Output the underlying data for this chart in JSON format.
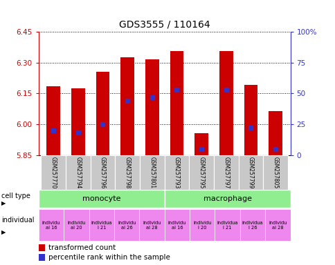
{
  "title": "GDS3555 / 110164",
  "samples": [
    "GSM257770",
    "GSM257794",
    "GSM257796",
    "GSM257798",
    "GSM257801",
    "GSM257793",
    "GSM257795",
    "GSM257797",
    "GSM257799",
    "GSM257805"
  ],
  "bar_tops": [
    6.185,
    6.175,
    6.255,
    6.325,
    6.315,
    6.355,
    5.955,
    6.355,
    6.19,
    6.065
  ],
  "percentile_ranks": [
    20,
    18,
    25,
    44,
    47,
    53,
    5,
    53,
    22,
    5
  ],
  "ylim_left": [
    5.85,
    6.45
  ],
  "ylim_right": [
    0,
    100
  ],
  "yticks_left": [
    5.85,
    6.0,
    6.15,
    6.3,
    6.45
  ],
  "yticks_right": [
    0,
    25,
    50,
    75,
    100
  ],
  "ytick_labels_right": [
    "0",
    "25",
    "50",
    "75",
    "100%"
  ],
  "bar_color": "#cc0000",
  "marker_color": "#3333cc",
  "bar_bottom": 5.85,
  "monocyte_color": "#90ee90",
  "macrophage_color": "#90ee90",
  "individual_color": "#ee88ee",
  "sample_bg_color": "#c8c8c8",
  "left_axis_color": "#cc0000",
  "right_axis_color": "#3333cc",
  "fig_width": 4.85,
  "fig_height": 3.84
}
